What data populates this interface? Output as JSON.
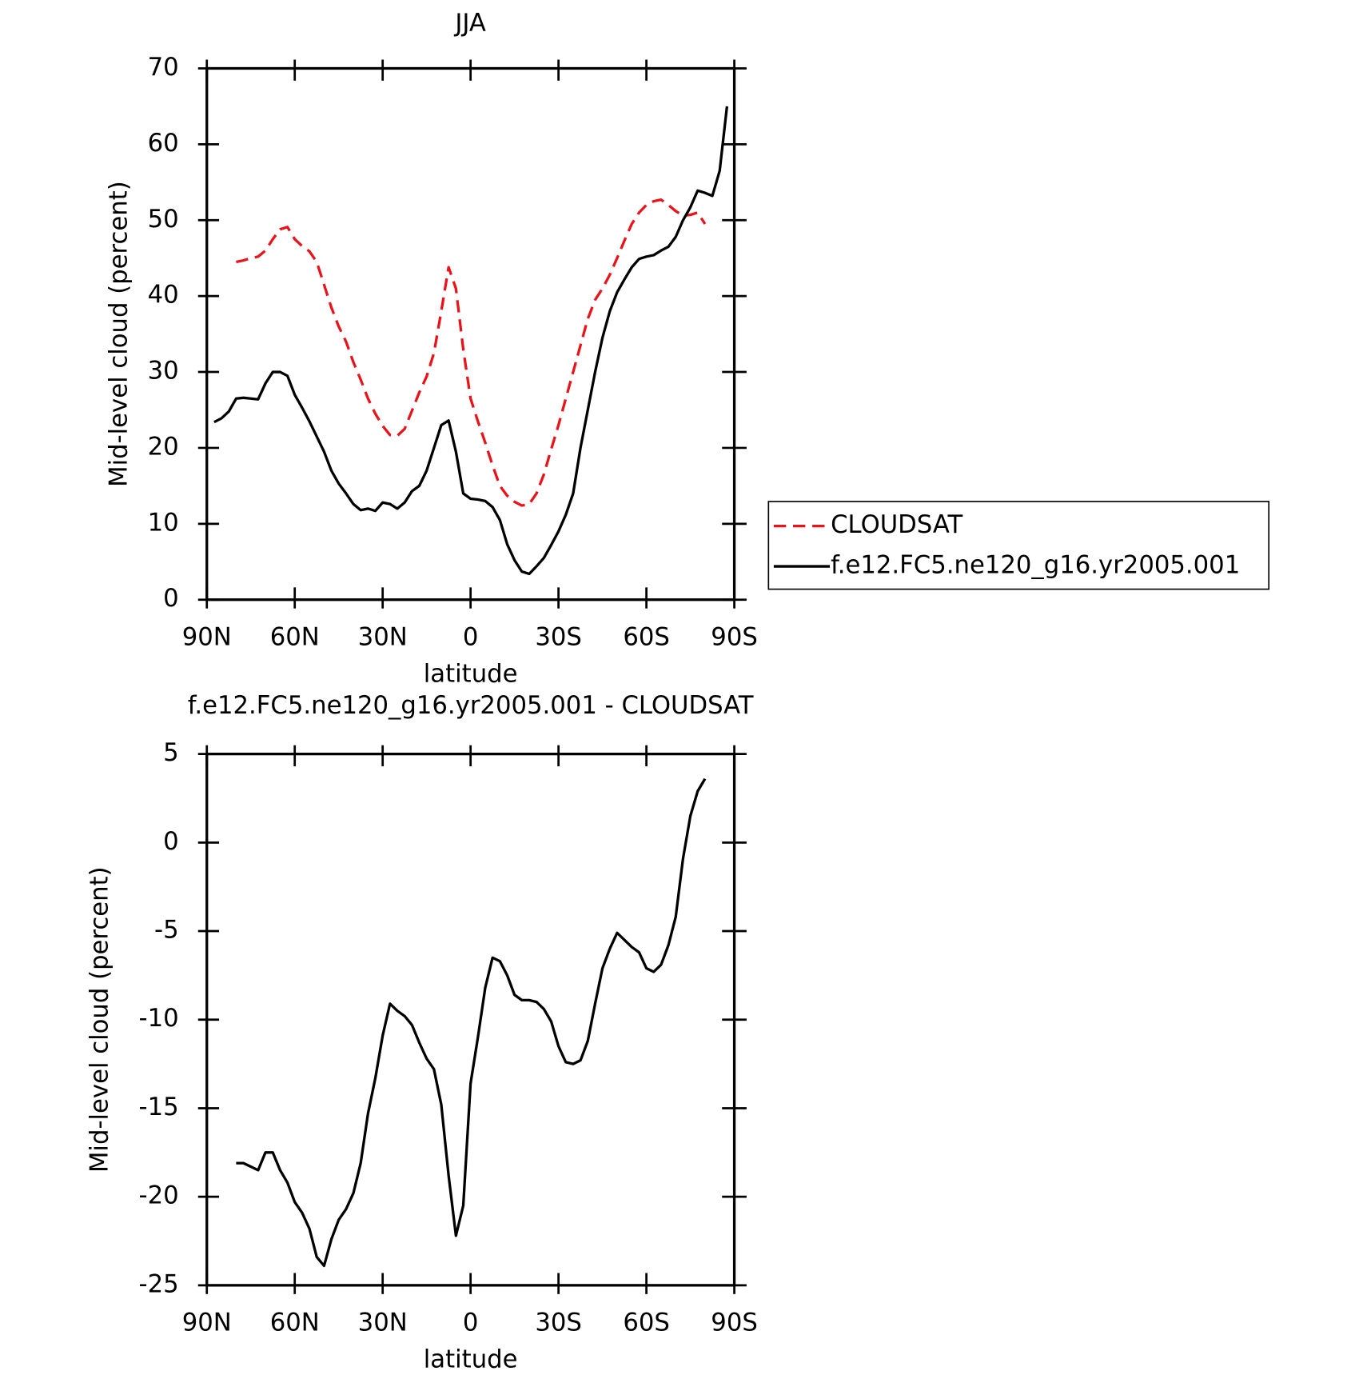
{
  "chart_data": [
    {
      "type": "line",
      "title": "JJA",
      "xlabel": "latitude",
      "ylabel": "Mid-level cloud (percent)",
      "xlim": [
        90,
        -90
      ],
      "xticks": [
        {
          "value": 90,
          "label": "90N"
        },
        {
          "value": 60,
          "label": "60N"
        },
        {
          "value": 30,
          "label": "30N"
        },
        0,
        {
          "value": -30,
          "label": "30S"
        },
        {
          "value": -60,
          "label": "60S"
        },
        {
          "value": -90,
          "label": "90S"
        }
      ],
      "ylim": [
        0,
        70
      ],
      "yticks": [
        0,
        10,
        20,
        30,
        40,
        50,
        60,
        70
      ],
      "legend": "right",
      "x": [
        87.5,
        85,
        82.5,
        80,
        77.5,
        75,
        72.5,
        70,
        67.5,
        65,
        62.5,
        60,
        57.5,
        55,
        52.5,
        50,
        47.5,
        45,
        42.5,
        40,
        37.5,
        35,
        32.5,
        30,
        27.5,
        25,
        22.5,
        20,
        17.5,
        15,
        12.5,
        10,
        7.5,
        5,
        2.5,
        0,
        -2.5,
        -5,
        -7.5,
        -10,
        -12.5,
        -15,
        -17.5,
        -20,
        -22.5,
        -25,
        -27.5,
        -30,
        -32.5,
        -35,
        -37.5,
        -40,
        -42.5,
        -45,
        -47.5,
        -50,
        -52.5,
        -55,
        -57.5,
        -60,
        -62.5,
        -65,
        -67.5,
        -70,
        -72.5,
        -75,
        -77.5,
        -80,
        -82.5,
        -85,
        -87.5
      ],
      "series": [
        {
          "name": "CLOUDSAT",
          "color": "#e8141a",
          "linestyle": "dashed",
          "values": [
            null,
            null,
            null,
            44.5,
            44.7,
            45.0,
            45.2,
            46.0,
            47.5,
            48.8,
            49.1,
            47.5,
            46.6,
            45.9,
            44.5,
            41.5,
            38.5,
            36.0,
            34.0,
            31.3,
            29.0,
            26.5,
            24.5,
            22.9,
            21.7,
            21.6,
            22.5,
            24.9,
            27.3,
            29.4,
            32.5,
            38.0,
            43.8,
            41.0,
            33.0,
            26.5,
            23.5,
            20.7,
            17.7,
            15.0,
            13.7,
            12.9,
            12.4,
            12.6,
            14.0,
            16.5,
            19.8,
            23.0,
            26.5,
            30.0,
            33.5,
            37.0,
            39.5,
            41.0,
            42.8,
            45.0,
            47.3,
            49.5,
            51.0,
            52.0,
            52.5,
            52.7,
            52.0,
            51.2,
            50.6,
            50.7,
            51.0,
            49.5,
            null,
            null,
            null
          ]
        },
        {
          "name": "f.e12.FC5.ne120_g16.yr2005.001",
          "color": "#000000",
          "linestyle": "solid",
          "values": [
            23.4,
            23.9,
            24.8,
            26.5,
            26.6,
            26.5,
            26.4,
            28.5,
            30.0,
            30.0,
            29.5,
            27.0,
            25.3,
            23.5,
            21.5,
            19.5,
            17.0,
            15.3,
            14.0,
            12.6,
            11.8,
            12.0,
            11.7,
            12.8,
            12.6,
            12.0,
            12.8,
            14.3,
            15.0,
            17.0,
            20.0,
            23.0,
            23.6,
            19.5,
            14.0,
            13.3,
            13.2,
            13.0,
            12.2,
            10.5,
            7.3,
            5.2,
            3.7,
            3.4,
            4.4,
            5.5,
            7.2,
            9.0,
            11.2,
            14.0,
            20.0,
            25.0,
            30.0,
            34.5,
            38.0,
            40.5,
            42.2,
            43.8,
            44.9,
            45.2,
            45.4,
            46.0,
            46.5,
            47.8,
            50.0,
            51.7,
            53.9,
            53.6,
            53.2,
            56.5,
            65.0
          ]
        }
      ]
    },
    {
      "type": "line",
      "title": "f.e12.FC5.ne120_g16.yr2005.001 - CLOUDSAT",
      "xlabel": "latitude",
      "ylabel": "Mid-level cloud (percent)",
      "xlim": [
        90,
        -90
      ],
      "xticks": [
        {
          "value": 90,
          "label": "90N"
        },
        {
          "value": 60,
          "label": "60N"
        },
        {
          "value": 30,
          "label": "30N"
        },
        0,
        {
          "value": -30,
          "label": "30S"
        },
        {
          "value": -60,
          "label": "60S"
        },
        {
          "value": -90,
          "label": "90S"
        }
      ],
      "ylim": [
        -25,
        5
      ],
      "yticks": [
        -25,
        -20,
        -15,
        -10,
        -5,
        0,
        5
      ],
      "color": "#000000",
      "x": [
        80,
        77.5,
        75,
        72.5,
        70,
        67.5,
        65,
        62.5,
        60,
        57.5,
        55,
        52.5,
        50,
        47.5,
        45,
        42.5,
        40,
        37.5,
        35,
        32.5,
        30,
        27.5,
        25,
        22.5,
        20,
        17.5,
        15,
        12.5,
        10,
        7.5,
        5,
        2.5,
        0,
        -2.5,
        -5,
        -7.5,
        -10,
        -12.5,
        -15,
        -17.5,
        -20,
        -22.5,
        -25,
        -27.5,
        -30,
        -32.5,
        -35,
        -37.5,
        -40,
        -42.5,
        -45,
        -47.5,
        -50,
        -52.5,
        -55,
        -57.5,
        -60,
        -62.5,
        -65,
        -67.5,
        -70,
        -72.5,
        -75,
        -77.5,
        -80
      ],
      "values": [
        -18.1,
        -18.1,
        -18.3,
        -18.5,
        -17.5,
        -17.5,
        -18.5,
        -19.2,
        -20.3,
        -20.9,
        -21.8,
        -23.4,
        -23.9,
        -22.4,
        -21.3,
        -20.7,
        -19.8,
        -18.1,
        -15.3,
        -13.3,
        -10.9,
        -9.1,
        -9.5,
        -9.8,
        -10.3,
        -11.3,
        -12.2,
        -12.8,
        -14.8,
        -18.8,
        -22.2,
        -20.5,
        -13.6,
        -11.0,
        -8.2,
        -6.5,
        -6.7,
        -7.5,
        -8.6,
        -8.9,
        -8.9,
        -9.0,
        -9.4,
        -10.1,
        -11.5,
        -12.4,
        -12.5,
        -12.3,
        -11.2,
        -9.1,
        -7.1,
        -6.0,
        -5.1,
        -5.5,
        -5.9,
        -6.2,
        -7.1,
        -7.3,
        -6.9,
        -5.8,
        -4.2,
        -0.9,
        1.5,
        2.9,
        3.6
      ]
    }
  ]
}
